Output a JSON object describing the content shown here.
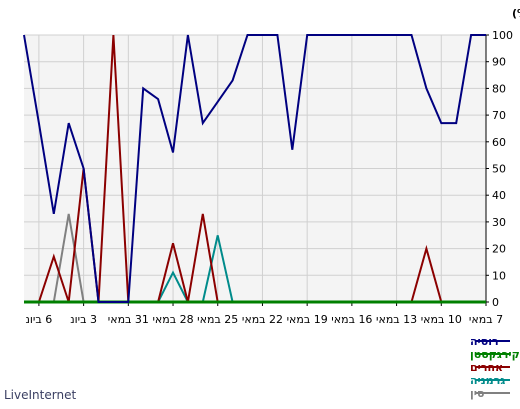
{
  "chart_data": {
    "type": "line",
    "ylabel": "חלק (%)",
    "ylim": [
      0,
      100
    ],
    "yticks": [
      0,
      10,
      20,
      30,
      40,
      50,
      60,
      70,
      80,
      90,
      100
    ],
    "xlim": [
      0,
      31
    ],
    "xticks": [
      {
        "x": 1,
        "label": "6 ביונ"
      },
      {
        "x": 4,
        "label": "3 ביונ"
      },
      {
        "x": 7,
        "label": "31 במאי"
      },
      {
        "x": 10,
        "label": "28 במאי"
      },
      {
        "x": 13,
        "label": "25 במאי"
      },
      {
        "x": 16,
        "label": "22 במאי"
      },
      {
        "x": 19,
        "label": "19 במאי"
      },
      {
        "x": 22,
        "label": "16 במאי"
      },
      {
        "x": 25,
        "label": "13 במאי"
      },
      {
        "x": 28,
        "label": "10 במאי"
      },
      {
        "x": 31,
        "label": "7 במאי"
      }
    ],
    "grid": true,
    "legend_position": "bottom",
    "series": [
      {
        "name": "רוסיה",
        "color": "#000080",
        "x": [
          0,
          1,
          2,
          3,
          4,
          5,
          6,
          7,
          8,
          9,
          10,
          11,
          12,
          13,
          14,
          15,
          16,
          17,
          18,
          19,
          20,
          21,
          22,
          23,
          24,
          25,
          26,
          27,
          28,
          29,
          30,
          31
        ],
        "values": [
          100,
          67,
          33,
          67,
          50,
          0,
          0,
          0,
          80,
          76,
          56,
          100,
          67,
          75,
          83,
          100,
          100,
          100,
          57,
          100,
          100,
          100,
          100,
          100,
          100,
          100,
          100,
          80,
          67,
          67,
          100,
          100
        ]
      },
      {
        "name": "קירגקסטן",
        "color": "#008000",
        "x": [
          0,
          31
        ],
        "values": [
          0,
          0
        ]
      },
      {
        "name": "אחרים",
        "color": "#8b0000",
        "x": [
          0,
          1,
          2,
          3,
          4,
          5,
          6,
          7,
          8,
          9,
          10,
          11,
          12,
          13,
          14,
          15,
          16,
          17,
          18,
          19,
          20,
          21,
          22,
          23,
          24,
          25,
          26,
          27,
          28,
          29,
          30,
          31
        ],
        "values": [
          0,
          0,
          17,
          0,
          50,
          0,
          100,
          0,
          0,
          0,
          22,
          0,
          33,
          0,
          0,
          0,
          0,
          0,
          0,
          0,
          0,
          0,
          0,
          0,
          0,
          0,
          0,
          20,
          0,
          0,
          0,
          0
        ]
      },
      {
        "name": "גרמניה",
        "color": "#008b8b",
        "x": [
          0,
          1,
          2,
          3,
          4,
          5,
          6,
          7,
          8,
          9,
          10,
          11,
          12,
          13,
          14,
          15,
          16,
          17,
          18,
          19,
          20,
          21,
          22,
          23,
          24,
          25,
          26,
          27,
          28,
          29,
          30,
          31
        ],
        "values": [
          0,
          0,
          0,
          0,
          0,
          0,
          0,
          0,
          0,
          0,
          11,
          0,
          0,
          25,
          0,
          0,
          0,
          0,
          0,
          0,
          0,
          0,
          0,
          0,
          0,
          0,
          0,
          0,
          0,
          0,
          0,
          0
        ]
      },
      {
        "name": "סין",
        "color": "#808080",
        "x": [
          0,
          1,
          2,
          3,
          4,
          5,
          6,
          7,
          8,
          9,
          10,
          11,
          12,
          13,
          14,
          15,
          16,
          17,
          18,
          19,
          20,
          21,
          22,
          23,
          24,
          25,
          26,
          27,
          28,
          29,
          30,
          31
        ],
        "values": [
          0,
          0,
          0,
          33,
          0,
          0,
          0,
          0,
          0,
          0,
          0,
          0,
          0,
          0,
          0,
          0,
          0,
          0,
          0,
          0,
          0,
          0,
          0,
          0,
          0,
          0,
          0,
          0,
          0,
          0,
          0,
          0
        ]
      }
    ]
  },
  "footer": {
    "brand": "LiveInternet"
  }
}
